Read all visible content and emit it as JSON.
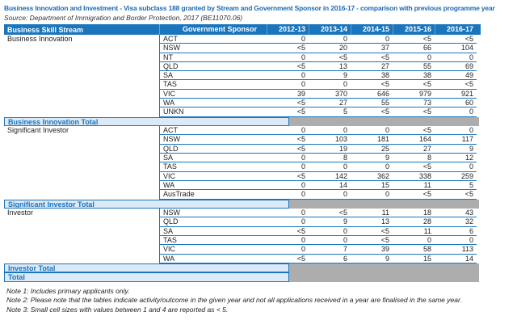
{
  "page": {
    "title": "Business Innovation and Investment - Visa subclass 188 granted by Stream and Government Sponsor in 2016-17 - comparison with previous programme year",
    "source": "Source: Department of Immigration and Border Protection, 2017 (BE11070.06)",
    "notes": [
      "Note 1: Includes primary applicants only.",
      "Note 2: Please note that the tables indicate activity/outcome in the given year and not all applications received in a year are finalised in the same year.",
      "Note 3: Small cell sizes with values between 1 and 4 are reported as < 5."
    ]
  },
  "colors": {
    "table_blue": "#1B75BC",
    "title_blue": "#1C6BB5",
    "total_row_bg": "#DCE9F6",
    "suppressed_gray": "#ADADAD",
    "header_text": "#FFFFFF"
  },
  "table": {
    "columns": [
      "Business Skill Stream",
      "Government Sponsor",
      "2012-13",
      "2013-14",
      "2014-15",
      "2015-16",
      "2016-17"
    ],
    "sections": [
      {
        "stream": "Business Innovation",
        "rows": [
          {
            "sponsor": "ACT",
            "values": [
              "0",
              "0",
              "0",
              "<5",
              "<5"
            ]
          },
          {
            "sponsor": "NSW",
            "values": [
              "<5",
              "20",
              "37",
              "66",
              "104"
            ]
          },
          {
            "sponsor": "NT",
            "values": [
              "0",
              "<5",
              "<5",
              "0",
              "0"
            ]
          },
          {
            "sponsor": "QLD",
            "values": [
              "<5",
              "13",
              "27",
              "55",
              "69"
            ]
          },
          {
            "sponsor": "SA",
            "values": [
              "0",
              "9",
              "38",
              "38",
              "49"
            ]
          },
          {
            "sponsor": "TAS",
            "values": [
              "0",
              "0",
              "<5",
              "<5",
              "<5"
            ]
          },
          {
            "sponsor": "VIC",
            "values": [
              "39",
              "370",
              "646",
              "979",
              "921"
            ]
          },
          {
            "sponsor": "WA",
            "values": [
              "<5",
              "27",
              "55",
              "73",
              "60"
            ]
          },
          {
            "sponsor": "UNKN",
            "values": [
              "<5",
              "5",
              "<5",
              "<5",
              "0"
            ]
          }
        ],
        "total_label": "Business Innovation Total"
      },
      {
        "stream": "Significant Investor",
        "rows": [
          {
            "sponsor": "ACT",
            "values": [
              "0",
              "0",
              "0",
              "<5",
              "0"
            ]
          },
          {
            "sponsor": "NSW",
            "values": [
              "<5",
              "103",
              "181",
              "164",
              "117"
            ]
          },
          {
            "sponsor": "QLD",
            "values": [
              "<5",
              "19",
              "25",
              "27",
              "9"
            ]
          },
          {
            "sponsor": "SA",
            "values": [
              "0",
              "8",
              "9",
              "8",
              "12"
            ]
          },
          {
            "sponsor": "TAS",
            "values": [
              "0",
              "0",
              "0",
              "<5",
              "0"
            ]
          },
          {
            "sponsor": "VIC",
            "values": [
              "<5",
              "142",
              "362",
              "338",
              "259"
            ]
          },
          {
            "sponsor": "WA",
            "values": [
              "0",
              "14",
              "15",
              "11",
              "5"
            ]
          },
          {
            "sponsor": "AusTrade",
            "values": [
              "0",
              "0",
              "0",
              "<5",
              "<5"
            ]
          }
        ],
        "total_label": "Significant Investor Total"
      },
      {
        "stream": "Investor",
        "rows": [
          {
            "sponsor": "NSW",
            "values": [
              "0",
              "<5",
              "11",
              "18",
              "43"
            ]
          },
          {
            "sponsor": "QLD",
            "values": [
              "0",
              "9",
              "13",
              "28",
              "32"
            ]
          },
          {
            "sponsor": "SA",
            "values": [
              "<5",
              "0",
              "<5",
              "11",
              "6"
            ]
          },
          {
            "sponsor": "TAS",
            "values": [
              "0",
              "0",
              "<5",
              "0",
              "0"
            ]
          },
          {
            "sponsor": "VIC",
            "values": [
              "0",
              "7",
              "39",
              "58",
              "113"
            ]
          },
          {
            "sponsor": "WA",
            "values": [
              "<5",
              "6",
              "9",
              "15",
              "14"
            ]
          }
        ],
        "total_label": "Investor Total"
      }
    ],
    "grand_total_label": "Total"
  }
}
